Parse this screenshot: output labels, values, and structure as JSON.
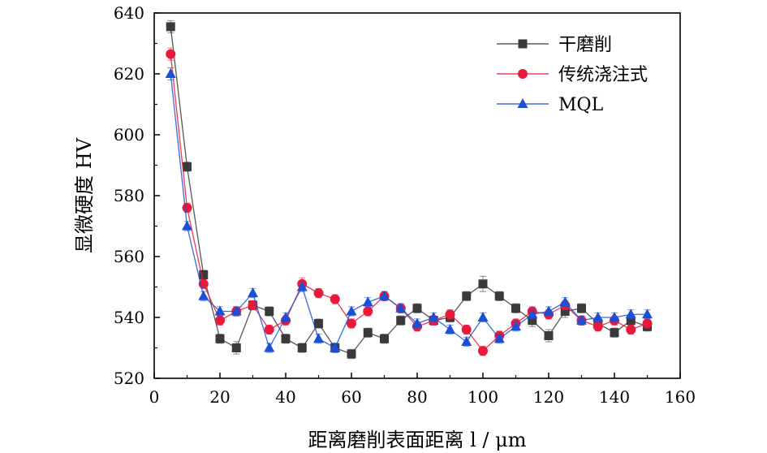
{
  "chart_data": {
    "type": "line",
    "xlabel": "距离磨削表面距离 l / μm",
    "ylabel": "显微硬度 HV",
    "xlim": [
      0,
      160
    ],
    "ylim": [
      520,
      640
    ],
    "xticks": [
      0,
      20,
      40,
      60,
      80,
      100,
      120,
      140,
      160
    ],
    "yticks": [
      520,
      540,
      560,
      580,
      600,
      620,
      640
    ],
    "grid": false,
    "legend_position": "top-right",
    "x": [
      5,
      10,
      15,
      20,
      25,
      30,
      35,
      40,
      45,
      50,
      55,
      60,
      65,
      70,
      75,
      80,
      85,
      90,
      95,
      100,
      105,
      110,
      115,
      120,
      125,
      130,
      135,
      140,
      145,
      150
    ],
    "series": [
      {
        "name": "干磨削",
        "color": "#3a3a3a",
        "marker": "square",
        "values": [
          635.5,
          589.5,
          554,
          533,
          530,
          544,
          542,
          533,
          530,
          538,
          530,
          528,
          535,
          533,
          539,
          543,
          539,
          540,
          547,
          551,
          547,
          543,
          539,
          534,
          542,
          543,
          538,
          535,
          539,
          537
        ],
        "errors": [
          2,
          1.5,
          1.5,
          1.5,
          2,
          1.5,
          1.5,
          1.5,
          1.5,
          1.5,
          1.5,
          1.5,
          1.5,
          1.5,
          1.5,
          1.5,
          1.5,
          1.5,
          1.5,
          2.5,
          1.5,
          1.5,
          2,
          2,
          2,
          1.5,
          1.5,
          1.5,
          1.5,
          1.5
        ]
      },
      {
        "name": "传统浇注式",
        "color": "#e8193a",
        "marker": "circle",
        "values": [
          626.5,
          576,
          551,
          539,
          542,
          544,
          536,
          539,
          551,
          548,
          546,
          538,
          542,
          547,
          543,
          537,
          539,
          541,
          536,
          529,
          534,
          538,
          542,
          541,
          544,
          539,
          537,
          539,
          536,
          538
        ],
        "errors": [
          2,
          1.5,
          1.5,
          1.5,
          1.5,
          1.5,
          1.5,
          1.5,
          2,
          1.5,
          1.5,
          1.5,
          1.5,
          1.5,
          1.5,
          1.5,
          1.5,
          1.5,
          1.5,
          1.5,
          1.5,
          1.5,
          1.5,
          1.5,
          1.5,
          1.5,
          1.5,
          1.5,
          1.5,
          1.5
        ]
      },
      {
        "name": "MQL",
        "color": "#1a4fd6",
        "marker": "triangle",
        "values": [
          620,
          570,
          547,
          542,
          542,
          548,
          530,
          540,
          550,
          533,
          530,
          542,
          545,
          547,
          543,
          538,
          540,
          536,
          532,
          540,
          533,
          537,
          541,
          542,
          545,
          539,
          540,
          540,
          541,
          541
        ],
        "errors": [
          2,
          1.5,
          1.5,
          1.5,
          1.5,
          1.5,
          1.5,
          1.5,
          1.5,
          1.5,
          1.5,
          1.5,
          1.5,
          1.5,
          1.5,
          1.5,
          1.5,
          1.5,
          1.5,
          1.5,
          1.5,
          1.5,
          1.5,
          1.5,
          1.5,
          1.5,
          1.5,
          1.5,
          1.5,
          1.5
        ]
      }
    ]
  }
}
